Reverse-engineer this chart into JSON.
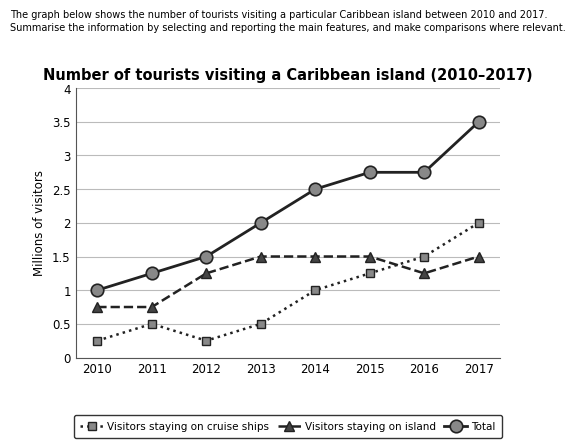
{
  "title": "Number of tourists visiting a Caribbean island (2010–2017)",
  "subtitle_line1": "The graph below shows the number of tourists visiting a particular Caribbean island between 2010 and 2017.",
  "subtitle_line2": "Summarise the information by selecting and reporting the main features, and make comparisons where relevant.",
  "ylabel": "Millions of visitors",
  "years": [
    2010,
    2011,
    2012,
    2013,
    2014,
    2015,
    2016,
    2017
  ],
  "cruise_ships": [
    0.25,
    0.5,
    0.25,
    0.5,
    1.0,
    1.25,
    1.5,
    2.0
  ],
  "island": [
    0.75,
    0.75,
    1.25,
    1.5,
    1.5,
    1.5,
    1.25,
    1.5
  ],
  "total": [
    1.0,
    1.25,
    1.5,
    2.0,
    2.5,
    2.75,
    2.75,
    3.5
  ],
  "ylim": [
    0,
    4
  ],
  "yticks": [
    0,
    0.5,
    1.0,
    1.5,
    2.0,
    2.5,
    3.0,
    3.5,
    4.0
  ],
  "background_color": "#ffffff",
  "grid_color": "#bbbbbb",
  "line_color": "#222222",
  "marker_grey": "#888888",
  "marker_dark": "#444444",
  "legend_labels": [
    "Visitors staying on cruise ships",
    "Visitors staying on island",
    "Total"
  ]
}
